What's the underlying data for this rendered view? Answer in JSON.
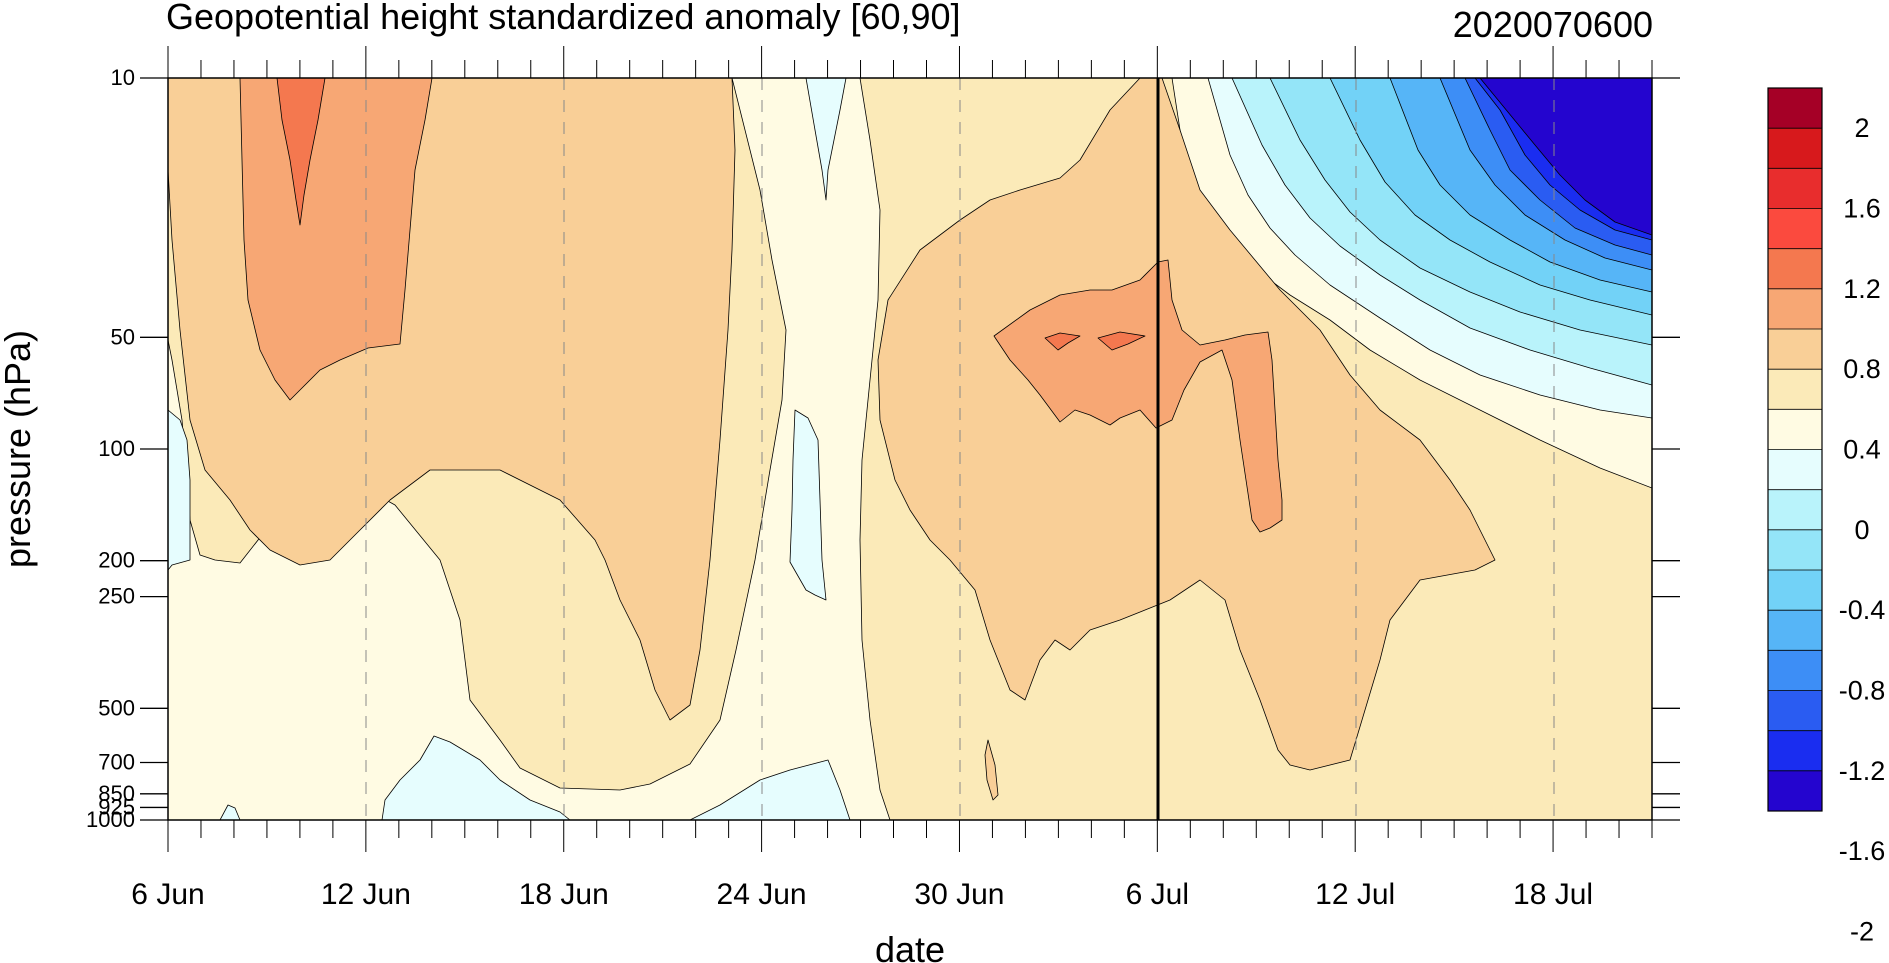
{
  "chart_data": {
    "type": "contour",
    "title": "Geopotential height standardized anomaly [60,90]",
    "subtitle": "2020070600",
    "xlabel": "date",
    "ylabel": "pressure (hPa)",
    "x_ticks": [
      "6 Jun",
      "12 Jun",
      "18 Jun",
      "24 Jun",
      "30 Jun",
      "6 Jul",
      "12 Jul",
      "18 Jul"
    ],
    "x_range": [
      "2020-06-06",
      "2020-07-21"
    ],
    "current_date": "6 Jul",
    "y_scale": "log",
    "y_ticks": [
      10,
      50,
      100,
      200,
      250,
      500,
      700,
      850,
      925,
      1000
    ],
    "y_range": [
      1000,
      10
    ],
    "colorbar_labels": [
      "2",
      "1.6",
      "1.2",
      "0.8",
      "0.4",
      "0",
      "-0.4",
      "-0.8",
      "-1.2",
      "-1.6",
      "-2"
    ],
    "colorbar_colors": [
      "#a50026",
      "#d7191c",
      "#e82d2d",
      "#fb4a3e",
      "#f4784f",
      "#f7a774",
      "#f9cf97",
      "#fbeab8",
      "#fffbe3",
      "#e6fdfe",
      "#b9f3fb",
      "#94e5f8",
      "#72d2f7",
      "#56b5f7",
      "#3d8ef6",
      "#2a5cf2",
      "#1a2df0",
      "#2405cf"
    ],
    "field_units": "standardized anomaly",
    "regions": [
      {
        "level": "0 to 0.4",
        "color": "#fffbe3"
      },
      {
        "level": "0.4 to 0.8",
        "color": "#fbeab8"
      },
      {
        "level": "0.8 to 1.0",
        "color": "#f9cf97"
      },
      {
        "level": "1.0 to 1.2",
        "color": "#f7a774"
      },
      {
        "level": "1.2 to 1.4",
        "color": "#f4784f"
      },
      {
        "level": "-0.2 to 0",
        "color": "#e6fdfe"
      },
      {
        "level": "below -2",
        "color": "#2405cf"
      }
    ]
  }
}
